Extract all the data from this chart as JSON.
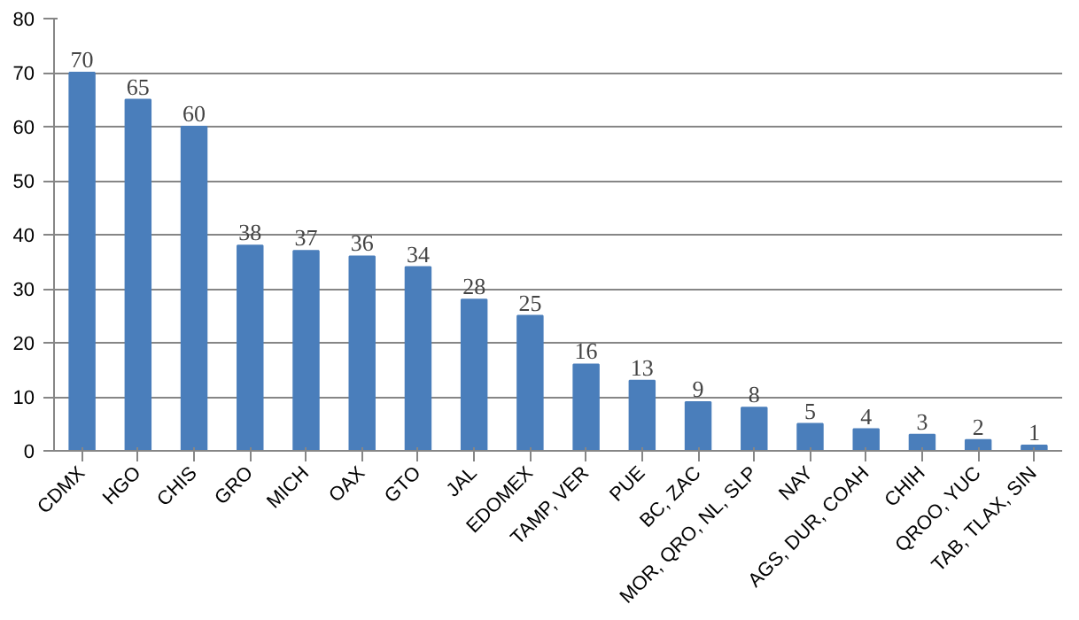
{
  "chart_data": {
    "type": "bar",
    "categories": [
      "CDMX",
      "HGO",
      "CHIS",
      "GRO",
      "MICH",
      "OAX",
      "GTO",
      "JAL",
      "EDOMEX",
      "TAMP, VER",
      "PUE",
      "BC, ZAC",
      "MOR, QRO, NL, SLP",
      "NAY",
      "AGS, DUR, COAH",
      "CHIH",
      "QROO, YUC",
      "TAB, TLAX, SIN"
    ],
    "values": [
      70,
      65,
      60,
      38,
      37,
      36,
      34,
      28,
      25,
      16,
      13,
      9,
      8,
      5,
      4,
      3,
      2,
      1
    ],
    "color": "#4a7ebb",
    "ylim": [
      0,
      80
    ],
    "yticks": [
      0,
      10,
      20,
      30,
      40,
      50,
      60,
      70,
      80
    ],
    "grid": "y",
    "data_labels": true
  }
}
